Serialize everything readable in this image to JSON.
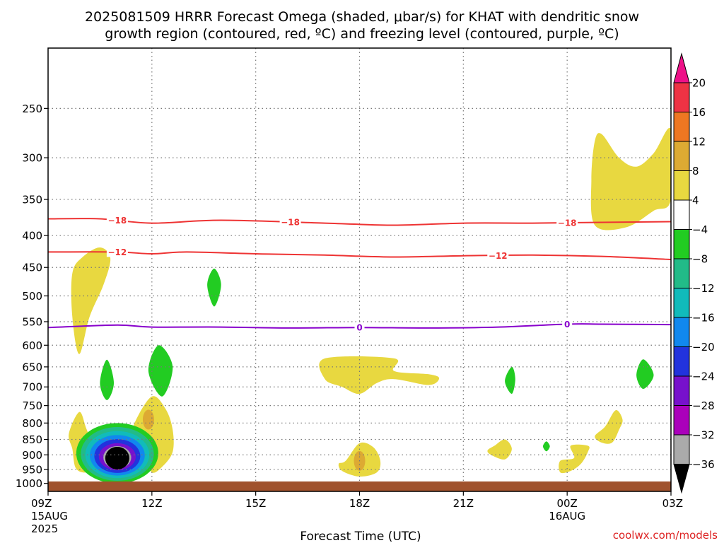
{
  "title_lines": [
    "2025081509 HRRR Forecast Omega (shaded, μbar/s) for KHAT with dendritic snow",
    "growth region (contoured, red, ºC) and freezing level (contoured, purple, ºC)"
  ],
  "xlabel": "Forecast Time (UTC)",
  "credit": "coolwx.com/models",
  "colors": {
    "dendritic": "#ee3333",
    "freezing": "#8800cc",
    "ground": "#a0522d",
    "grid": "#777777"
  },
  "chart_data": {
    "type": "contour",
    "y_axis": {
      "quantity": "pressure",
      "scale": "log",
      "inverted": true,
      "range": [
        200,
        1030
      ],
      "ticks": [
        250,
        300,
        350,
        400,
        450,
        500,
        550,
        600,
        650,
        700,
        750,
        800,
        850,
        900,
        950,
        1000
      ]
    },
    "x_axis": {
      "range_hours": [
        0,
        18
      ],
      "ticks": [
        {
          "hour": 0,
          "label": "09Z",
          "sub1": "15AUG",
          "sub2": "2025"
        },
        {
          "hour": 3,
          "label": "12Z",
          "sub1": "",
          "sub2": ""
        },
        {
          "hour": 6,
          "label": "15Z",
          "sub1": "",
          "sub2": ""
        },
        {
          "hour": 9,
          "label": "18Z",
          "sub1": "",
          "sub2": ""
        },
        {
          "hour": 12,
          "label": "21Z",
          "sub1": "",
          "sub2": ""
        },
        {
          "hour": 15,
          "label": "00Z",
          "sub1": "16AUG",
          "sub2": ""
        },
        {
          "hour": 18,
          "label": "03Z",
          "sub1": "",
          "sub2": ""
        }
      ]
    },
    "grid": true,
    "colorbar": {
      "labels": [
        "20",
        "16",
        "12",
        "8",
        "4",
        "−4",
        "−8",
        "−12",
        "−16",
        "−20",
        "−24",
        "−28",
        "−32",
        "−36"
      ],
      "colors": [
        "#ee3344",
        "#ee7722",
        "#ddaa33",
        "#e8d840",
        "#ffffff",
        "#22cc22",
        "#22bb88",
        "#11bbbb",
        "#1188ee",
        "#2233dd",
        "#7711cc",
        "#aa00bb",
        "#aaaaaa"
      ],
      "top_cap": "#ee1188",
      "bottom_cap": "#000000"
    },
    "contours": [
      {
        "name": "-18",
        "color": "#ee3333",
        "labels_at_hours": [
          2,
          7,
          15
        ],
        "points": [
          [
            0,
            376
          ],
          [
            1.5,
            376
          ],
          [
            3,
            382
          ],
          [
            5,
            378
          ],
          [
            8,
            382
          ],
          [
            10,
            385
          ],
          [
            12,
            382
          ],
          [
            14,
            382
          ],
          [
            16,
            381
          ],
          [
            18,
            380
          ]
        ]
      },
      {
        "name": "-12",
        "color": "#ee3333",
        "labels_at_hours": [
          2,
          13
        ],
        "points": [
          [
            0,
            425
          ],
          [
            2,
            425
          ],
          [
            3,
            428
          ],
          [
            4,
            425
          ],
          [
            6,
            428
          ],
          [
            8,
            430
          ],
          [
            10,
            433
          ],
          [
            12,
            431
          ],
          [
            14,
            430
          ],
          [
            16,
            432
          ],
          [
            18,
            437
          ]
        ]
      },
      {
        "name": "0",
        "color": "#8800cc",
        "labels_at_hours": [
          9,
          15
        ],
        "points": [
          [
            0,
            562
          ],
          [
            2,
            557
          ],
          [
            3,
            561
          ],
          [
            5,
            561
          ],
          [
            7,
            563
          ],
          [
            9,
            562
          ],
          [
            11,
            563
          ],
          [
            13,
            561
          ],
          [
            15,
            555
          ],
          [
            16,
            555
          ],
          [
            18,
            556
          ]
        ]
      }
    ],
    "shaded_regions": [
      {
        "value": "4 to 8",
        "color": "#e8d840",
        "outline": [
          [
            1,
            433
          ],
          [
            1.5,
            418
          ],
          [
            1.8,
            435
          ],
          [
            1.6,
            480
          ],
          [
            1.2,
            540
          ],
          [
            0.9,
            620
          ],
          [
            0.7,
            540
          ],
          [
            0.7,
            460
          ]
        ]
      },
      {
        "value": "4 to 8",
        "color": "#e8d840",
        "outline": [
          [
            17.5,
            295
          ],
          [
            18,
            270
          ],
          [
            18,
            350
          ],
          [
            17.5,
            365
          ],
          [
            16.7,
            388
          ],
          [
            15.8,
            385
          ],
          [
            15.7,
            325
          ],
          [
            15.8,
            282
          ],
          [
            16,
            275
          ],
          [
            16.5,
            300
          ],
          [
            17,
            310
          ]
        ]
      },
      {
        "value": "4 to 8",
        "color": "#e8d840",
        "outline": [
          [
            8,
            630
          ],
          [
            10,
            630
          ],
          [
            10,
            660
          ],
          [
            11,
            668
          ],
          [
            11.3,
            678
          ],
          [
            11,
            695
          ],
          [
            10,
            680
          ],
          [
            9.5,
            690
          ],
          [
            9,
            718
          ],
          [
            8.5,
            700
          ],
          [
            8,
            680
          ]
        ]
      },
      {
        "value": "4 to 8",
        "color": "#e8d840",
        "outline": [
          [
            0.6,
            832
          ],
          [
            0.9,
            768
          ],
          [
            1.1,
            815
          ],
          [
            1.3,
            880
          ],
          [
            1.2,
            930
          ],
          [
            1.1,
            960
          ],
          [
            0.8,
            945
          ],
          [
            0.7,
            880
          ]
        ]
      },
      {
        "value": "4 to 8",
        "color": "#e8d840",
        "outline": [
          [
            2.5,
            800
          ],
          [
            3,
            725
          ],
          [
            3.4,
            760
          ],
          [
            3.6,
            820
          ],
          [
            3.6,
            890
          ],
          [
            3.3,
            940
          ],
          [
            3,
            960
          ],
          [
            2.8,
            900
          ],
          [
            2.5,
            840
          ]
        ]
      },
      {
        "value": "4 to 8",
        "color": "#e8d840",
        "outline": [
          [
            8.6,
            920
          ],
          [
            9,
            862
          ],
          [
            9.4,
            875
          ],
          [
            9.6,
            920
          ],
          [
            9.5,
            960
          ],
          [
            9,
            975
          ],
          [
            8.5,
            955
          ],
          [
            8.4,
            930
          ]
        ]
      },
      {
        "value": "4 to 8",
        "color": "#e8d840",
        "outline": [
          [
            12.9,
            870
          ],
          [
            13.2,
            850
          ],
          [
            13.4,
            880
          ],
          [
            13.2,
            915
          ],
          [
            12.8,
            900
          ],
          [
            12.7,
            885
          ]
        ]
      },
      {
        "value": "4 to 8",
        "color": "#e8d840",
        "outline": [
          [
            15.2,
            910
          ],
          [
            15.1,
            870
          ],
          [
            15.6,
            870
          ],
          [
            15.6,
            890
          ],
          [
            15.4,
            930
          ],
          [
            15.1,
            955
          ],
          [
            14.8,
            960
          ],
          [
            14.8,
            920
          ]
        ]
      },
      {
        "value": "4 to 8",
        "color": "#e8d840",
        "outline": [
          [
            16.1,
            810
          ],
          [
            16.4,
            763
          ],
          [
            16.6,
            790
          ],
          [
            16.5,
            820
          ],
          [
            16.3,
            860
          ],
          [
            16,
            860
          ],
          [
            15.8,
            840
          ]
        ]
      },
      {
        "value": "-4 to -8",
        "color": "#22cc22",
        "outline": [
          [
            4.8,
            452
          ],
          [
            5,
            480
          ],
          [
            4.8,
            520
          ],
          [
            4.6,
            480
          ]
        ]
      },
      {
        "value": "-4 to -8",
        "color": "#22cc22",
        "outline": [
          [
            3.2,
            600
          ],
          [
            3.6,
            650
          ],
          [
            3.3,
            725
          ],
          [
            2.9,
            660
          ]
        ]
      },
      {
        "value": "-4 to -8",
        "color": "#22cc22",
        "outline": [
          [
            1.7,
            633
          ],
          [
            1.9,
            690
          ],
          [
            1.7,
            735
          ],
          [
            1.5,
            690
          ]
        ]
      },
      {
        "value": "-4 to -8",
        "color": "#22cc22",
        "outline": [
          [
            13.4,
            650
          ],
          [
            13.5,
            680
          ],
          [
            13.4,
            718
          ],
          [
            13.2,
            685
          ]
        ]
      },
      {
        "value": "-4 to -8",
        "color": "#22cc22",
        "outline": [
          [
            14.4,
            856
          ],
          [
            14.5,
            872
          ],
          [
            14.4,
            888
          ],
          [
            14.3,
            872
          ]
        ]
      },
      {
        "value": "-4 to -8",
        "color": "#22cc22",
        "outline": [
          [
            17.2,
            632
          ],
          [
            17.5,
            670
          ],
          [
            17.2,
            705
          ],
          [
            17,
            670
          ]
        ]
      }
    ],
    "downward_core": {
      "center_hour": 2,
      "top_pressure": 800,
      "bottom_pressure": 1000,
      "min_value": "≤ −36",
      "rings": [
        "#22cc22",
        "#22bb88",
        "#11bbbb",
        "#1188ee",
        "#2233dd",
        "#7711cc",
        "#aaaaaa",
        "#000000"
      ]
    },
    "positive_core": [
      {
        "center_hour": 1.1,
        "pressure": 870,
        "value": "8 to 12"
      },
      {
        "center_hour": 2.9,
        "pressure": 790,
        "value": "8 to 12"
      },
      {
        "center_hour": 9,
        "pressure": 920,
        "value": "8 to 12"
      }
    ]
  }
}
